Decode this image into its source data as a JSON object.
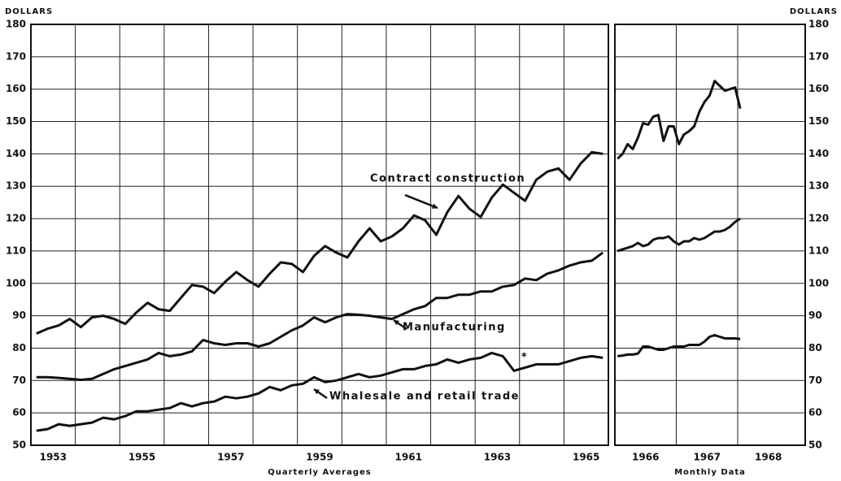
{
  "chart_data": [
    {
      "type": "line",
      "y_label": "DOLLARS",
      "x_label": "Quarterly Averages",
      "xlim": [
        1953,
        1966
      ],
      "ylim": [
        50,
        180
      ],
      "yticks": [
        50,
        60,
        70,
        80,
        90,
        100,
        110,
        120,
        130,
        140,
        150,
        160,
        170,
        180
      ],
      "xticks": [
        {
          "value": 1953.5,
          "label": "1953"
        },
        {
          "value": 1955.5,
          "label": "1955"
        },
        {
          "value": 1957.5,
          "label": "1957"
        },
        {
          "value": 1959.5,
          "label": "1959"
        },
        {
          "value": 1961.5,
          "label": "1961"
        },
        {
          "value": 1963.5,
          "label": "1963"
        },
        {
          "value": 1965.5,
          "label": "1965"
        }
      ],
      "xgrid": [
        1954,
        1955,
        1956,
        1957,
        1958,
        1959,
        1960,
        1961,
        1962,
        1963,
        1964,
        1965
      ],
      "grid": true,
      "x": [
        1953.125,
        1953.375,
        1953.625,
        1953.875,
        1954.125,
        1954.375,
        1954.625,
        1954.875,
        1955.125,
        1955.375,
        1955.625,
        1955.875,
        1956.125,
        1956.375,
        1956.625,
        1956.875,
        1957.125,
        1957.375,
        1957.625,
        1957.875,
        1958.125,
        1958.375,
        1958.625,
        1958.875,
        1959.125,
        1959.375,
        1959.625,
        1959.875,
        1960.125,
        1960.375,
        1960.625,
        1960.875,
        1961.125,
        1961.375,
        1961.625,
        1961.875,
        1962.125,
        1962.375,
        1962.625,
        1962.875,
        1963.125,
        1963.375,
        1963.625,
        1963.875,
        1964.125,
        1964.375,
        1964.625,
        1964.875,
        1965.125,
        1965.375,
        1965.625,
        1965.875
      ],
      "series": [
        {
          "name": "Contract construction",
          "color": "#111111",
          "values": [
            84.5,
            86,
            87,
            89,
            86.5,
            89.5,
            90,
            89,
            87.5,
            91,
            94,
            92,
            91.5,
            95.5,
            99.5,
            99,
            97,
            100.5,
            103.5,
            101,
            99,
            103,
            106.5,
            106,
            103.5,
            108.5,
            111.5,
            109.5,
            108,
            113,
            117,
            113,
            114.5,
            117,
            121,
            119.5,
            115,
            122,
            127,
            123,
            120.5,
            126.5,
            130.5,
            128,
            125.5,
            132,
            134.5,
            135.5,
            132,
            137,
            140.5,
            140
          ]
        },
        {
          "name": "Manufacturing",
          "color": "#111111",
          "values": [
            71,
            71,
            70.8,
            70.5,
            70.2,
            70.5,
            72,
            73.5,
            74.5,
            75.5,
            76.5,
            78.5,
            77.5,
            78,
            79,
            82.5,
            81.5,
            81,
            81.5,
            81.5,
            80.5,
            81.5,
            83.5,
            85.5,
            87,
            89.5,
            88,
            89.5,
            90.5,
            90.3,
            90,
            89.5,
            89,
            90.5,
            92,
            93,
            95.5,
            95.5,
            96.5,
            96.5,
            97.5,
            97.5,
            99,
            99.5,
            101.5,
            101,
            103,
            104,
            105.5,
            106.5,
            107,
            109.5
          ]
        },
        {
          "name": "Whalesale and retail trade",
          "color": "#111111",
          "values": [
            54.5,
            55,
            56.5,
            56,
            56.5,
            57,
            58.5,
            58,
            59,
            60.5,
            60.5,
            61,
            61.5,
            63,
            62,
            63,
            63.5,
            65,
            64.5,
            65,
            66,
            68,
            67,
            68.5,
            69,
            71,
            69.5,
            70,
            71,
            72,
            71,
            71.5,
            72.5,
            73.5,
            73.5,
            74.5,
            75,
            76.5,
            75.5,
            76.5,
            77,
            78.5,
            77.5,
            73,
            74,
            75,
            75,
            75,
            76,
            77,
            77.5,
            77
          ]
        }
      ],
      "annotations": [
        "*"
      ]
    },
    {
      "type": "line",
      "y_label": "DOLLARS",
      "x_label": "Monthly Data",
      "xlim": [
        1966,
        1969.1
      ],
      "ylim": [
        50,
        180
      ],
      "yticks": [
        50,
        60,
        70,
        80,
        90,
        100,
        110,
        120,
        130,
        140,
        150,
        160,
        170,
        180
      ],
      "xticks": [
        {
          "value": 1966.5,
          "label": "1966"
        },
        {
          "value": 1967.5,
          "label": "1967"
        },
        {
          "value": 1968.5,
          "label": "1968"
        }
      ],
      "xgrid": [
        1967,
        1968
      ],
      "grid": true,
      "x": [
        1966.042,
        1966.125,
        1966.208,
        1966.292,
        1966.375,
        1966.458,
        1966.542,
        1966.625,
        1966.708,
        1966.792,
        1966.875,
        1966.958,
        1967.042,
        1967.125,
        1967.208,
        1967.292,
        1967.375,
        1967.458,
        1967.542,
        1967.625,
        1967.708,
        1967.792,
        1967.875,
        1967.958,
        1968.042
      ],
      "series": [
        {
          "color": "#111111",
          "values": [
            138.5,
            140,
            143,
            141.5,
            145,
            149.5,
            149,
            151.5,
            152,
            144,
            148.5,
            148.5,
            143,
            146,
            147,
            148.5,
            153,
            156,
            158,
            162.5,
            161,
            159.5,
            160,
            160.5,
            154
          ]
        },
        {
          "color": "#111111",
          "values": [
            110,
            110.5,
            111,
            111.5,
            112.5,
            111.5,
            112,
            113.5,
            114,
            114,
            114.5,
            113,
            112,
            113,
            113,
            114,
            113.5,
            114,
            115,
            116,
            116,
            116.5,
            117.5,
            119,
            120
          ]
        },
        {
          "color": "#111111",
          "values": [
            77.5,
            77.7,
            78,
            78,
            78.3,
            80.5,
            80.5,
            80,
            79.5,
            79.5,
            80,
            80.5,
            80.5,
            80.5,
            81,
            81,
            81,
            82,
            83.5,
            84,
            83.5,
            83,
            83,
            83,
            82.8
          ]
        }
      ]
    }
  ]
}
